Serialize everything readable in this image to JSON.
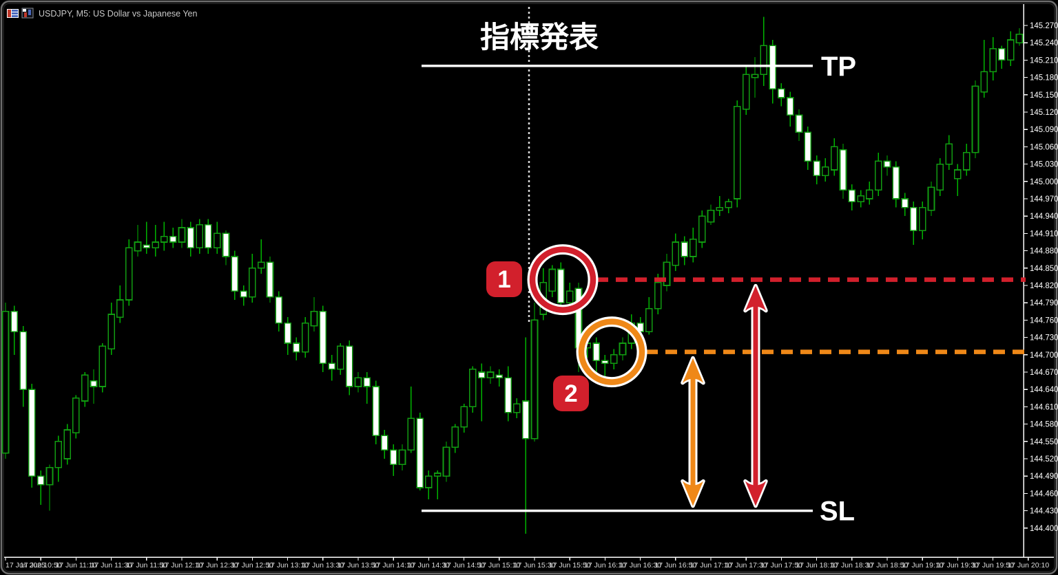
{
  "window": {
    "title": "USDJPY, M5:  US Dollar vs Japanese Yen",
    "icons": [
      "chart-list-icon",
      "candlestick-window-icon"
    ]
  },
  "annotations": {
    "event_label": "指標発表",
    "tp_label": "TP",
    "sl_label": "SL",
    "badge1": "1",
    "badge2": "2",
    "tp_price": 145.2,
    "sl_price": 144.43,
    "entry1_price": 144.83,
    "entry2_price": 144.705,
    "colors": {
      "red": "#d2202c",
      "orange": "#ef8818",
      "white": "#ffffff",
      "dotted_line": "#d9d9d9"
    }
  },
  "price_axis": {
    "labels": [
      "145.270",
      "145.240",
      "145.210",
      "145.180",
      "145.150",
      "145.120",
      "145.090",
      "145.060",
      "145.030",
      "145.000",
      "144.970",
      "144.940",
      "144.910",
      "144.880",
      "144.850",
      "144.820",
      "144.790",
      "144.760",
      "144.730",
      "144.700",
      "144.670",
      "144.640",
      "144.610",
      "144.580",
      "144.550",
      "144.520",
      "144.490",
      "144.460",
      "144.430",
      "144.400"
    ]
  },
  "time_axis": {
    "labels": [
      "17 Jun 2025",
      "17 Jun 10:50",
      "17 Jun 11:10",
      "17 Jun 11:30",
      "17 Jun 11:50",
      "17 Jun 12:10",
      "17 Jun 12:30",
      "17 Jun 12:50",
      "17 Jun 13:10",
      "17 Jun 13:30",
      "17 Jun 13:50",
      "17 Jun 14:10",
      "17 Jun 14:30",
      "17 Jun 14:50",
      "17 Jun 15:10",
      "17 Jun 15:30",
      "17 Jun 15:50",
      "17 Jun 16:10",
      "17 Jun 16:30",
      "17 Jun 16:50",
      "17 Jun 17:10",
      "17 Jun 17:30",
      "17 Jun 17:50",
      "17 Jun 18:10",
      "17 Jun 18:30",
      "17 Jun 18:50",
      "17 Jun 19:10",
      "17 Jun 19:30",
      "17 Jun 19:50",
      "17 Jun 20:10"
    ]
  },
  "chart_data": {
    "type": "candlestick",
    "symbol": "USDJPY",
    "timeframe": "M5",
    "title": "USDJPY, M5:  US Dollar vs Japanese Yen",
    "price_min": 144.4,
    "price_max": 145.27,
    "price_step": 0.03,
    "grid": false,
    "up_fill": "#000000",
    "down_fill": "#ffffff",
    "candle_border": "#129b12",
    "wick_color": "#00b400",
    "candles": [
      [
        144.53,
        144.79,
        144.52,
        144.775,
        "u"
      ],
      [
        144.775,
        144.785,
        144.7,
        144.74,
        "d"
      ],
      [
        144.74,
        144.75,
        144.61,
        144.64,
        "d"
      ],
      [
        144.64,
        144.65,
        144.47,
        144.49,
        "d"
      ],
      [
        144.49,
        144.5,
        144.44,
        144.475,
        "d"
      ],
      [
        144.475,
        144.51,
        144.43,
        144.505,
        "u"
      ],
      [
        144.505,
        144.56,
        144.48,
        144.55,
        "u"
      ],
      [
        144.52,
        144.58,
        144.51,
        144.57,
        "u"
      ],
      [
        144.565,
        144.63,
        144.555,
        144.625,
        "u"
      ],
      [
        144.62,
        144.67,
        144.61,
        144.665,
        "u"
      ],
      [
        144.655,
        144.675,
        144.615,
        144.645,
        "d"
      ],
      [
        144.645,
        144.72,
        144.635,
        144.715,
        "u"
      ],
      [
        144.71,
        144.79,
        144.7,
        144.77,
        "u"
      ],
      [
        144.765,
        144.82,
        144.755,
        144.795,
        "u"
      ],
      [
        144.795,
        144.9,
        144.785,
        144.885,
        "u"
      ],
      [
        144.88,
        144.925,
        144.87,
        144.895,
        "u"
      ],
      [
        144.89,
        144.93,
        144.875,
        144.885,
        "d"
      ],
      [
        144.885,
        144.925,
        144.87,
        144.895,
        "u"
      ],
      [
        144.895,
        144.93,
        144.88,
        144.905,
        "u"
      ],
      [
        144.905,
        144.92,
        144.885,
        144.895,
        "d"
      ],
      [
        144.895,
        144.935,
        144.885,
        144.92,
        "u"
      ],
      [
        144.92,
        144.93,
        144.87,
        144.885,
        "d"
      ],
      [
        144.885,
        144.935,
        144.875,
        144.925,
        "u"
      ],
      [
        144.925,
        144.935,
        144.875,
        144.885,
        "d"
      ],
      [
        144.885,
        144.93,
        144.875,
        144.91,
        "u"
      ],
      [
        144.91,
        144.915,
        144.855,
        144.87,
        "d"
      ],
      [
        144.87,
        144.88,
        144.795,
        144.81,
        "d"
      ],
      [
        144.81,
        144.82,
        144.785,
        144.8,
        "d"
      ],
      [
        144.8,
        144.875,
        144.79,
        144.85,
        "u"
      ],
      [
        144.85,
        144.9,
        144.84,
        144.86,
        "u"
      ],
      [
        144.86,
        144.87,
        144.79,
        144.8,
        "d"
      ],
      [
        144.8,
        144.81,
        144.74,
        144.755,
        "d"
      ],
      [
        144.755,
        144.765,
        144.7,
        144.72,
        "d"
      ],
      [
        144.72,
        144.73,
        144.69,
        144.705,
        "d"
      ],
      [
        144.705,
        144.765,
        144.695,
        144.755,
        "u"
      ],
      [
        144.75,
        144.8,
        144.74,
        144.775,
        "u"
      ],
      [
        144.775,
        144.785,
        144.67,
        144.685,
        "d"
      ],
      [
        144.685,
        144.7,
        144.655,
        144.675,
        "d"
      ],
      [
        144.675,
        144.72,
        144.665,
        144.715,
        "u"
      ],
      [
        144.715,
        144.725,
        144.63,
        144.645,
        "d"
      ],
      [
        144.645,
        144.67,
        144.635,
        144.66,
        "u"
      ],
      [
        144.66,
        144.67,
        144.615,
        144.645,
        "d"
      ],
      [
        144.645,
        144.655,
        144.545,
        144.56,
        "d"
      ],
      [
        144.56,
        144.57,
        144.52,
        144.535,
        "d"
      ],
      [
        144.535,
        144.545,
        144.49,
        144.51,
        "d"
      ],
      [
        144.51,
        144.545,
        144.5,
        144.535,
        "u"
      ],
      [
        144.535,
        144.645,
        144.53,
        144.59,
        "u"
      ],
      [
        144.59,
        144.6,
        144.465,
        144.47,
        "d"
      ],
      [
        144.47,
        144.5,
        144.45,
        144.49,
        "u"
      ],
      [
        144.49,
        144.5,
        144.45,
        144.495,
        "u"
      ],
      [
        144.49,
        144.55,
        144.48,
        144.54,
        "u"
      ],
      [
        144.54,
        144.58,
        144.53,
        144.575,
        "u"
      ],
      [
        144.575,
        144.615,
        144.565,
        144.61,
        "u"
      ],
      [
        144.61,
        144.68,
        144.6,
        144.675,
        "u"
      ],
      [
        144.67,
        144.685,
        144.585,
        144.66,
        "d"
      ],
      [
        144.66,
        144.68,
        144.65,
        144.67,
        "u"
      ],
      [
        144.665,
        144.675,
        144.645,
        144.66,
        "d"
      ],
      [
        144.66,
        144.68,
        144.585,
        144.6,
        "d"
      ],
      [
        144.6,
        144.625,
        144.59,
        144.615,
        "u"
      ],
      [
        144.62,
        144.73,
        144.39,
        144.555,
        "d"
      ],
      [
        144.555,
        144.79,
        144.55,
        144.76,
        "u"
      ],
      [
        144.77,
        144.85,
        144.76,
        144.825,
        "u"
      ],
      [
        144.81,
        144.855,
        144.8,
        144.848,
        "u"
      ],
      [
        144.848,
        144.86,
        144.77,
        144.79,
        "d"
      ],
      [
        144.79,
        144.825,
        144.78,
        144.81,
        "u"
      ],
      [
        144.815,
        144.825,
        144.67,
        144.712,
        "d"
      ],
      [
        144.712,
        144.74,
        144.695,
        144.72,
        "u"
      ],
      [
        144.72,
        144.73,
        144.665,
        144.69,
        "d"
      ],
      [
        144.69,
        144.7,
        144.65,
        144.685,
        "d"
      ],
      [
        144.685,
        144.71,
        144.675,
        144.7,
        "u"
      ],
      [
        144.7,
        144.73,
        144.69,
        144.72,
        "u"
      ],
      [
        144.72,
        144.77,
        144.71,
        144.755,
        "u"
      ],
      [
        144.755,
        144.765,
        144.73,
        144.74,
        "d"
      ],
      [
        144.74,
        144.8,
        144.735,
        144.78,
        "u"
      ],
      [
        144.78,
        144.84,
        144.77,
        144.825,
        "u"
      ],
      [
        144.82,
        144.875,
        144.81,
        144.86,
        "u"
      ],
      [
        144.855,
        144.91,
        144.845,
        144.895,
        "u"
      ],
      [
        144.895,
        144.905,
        144.855,
        144.87,
        "d"
      ],
      [
        144.87,
        144.92,
        144.86,
        144.9,
        "u"
      ],
      [
        144.895,
        144.95,
        144.885,
        144.94,
        "u"
      ],
      [
        144.93,
        144.96,
        144.925,
        144.95,
        "u"
      ],
      [
        144.95,
        144.975,
        144.94,
        144.955,
        "u"
      ],
      [
        144.955,
        144.97,
        144.945,
        144.965,
        "u"
      ],
      [
        144.97,
        145.14,
        144.955,
        145.13,
        "u"
      ],
      [
        145.125,
        145.2,
        145.115,
        145.185,
        "u"
      ],
      [
        145.18,
        145.215,
        145.145,
        145.185,
        "u"
      ],
      [
        145.185,
        145.285,
        145.165,
        145.235,
        "u"
      ],
      [
        145.235,
        145.245,
        145.135,
        145.16,
        "d"
      ],
      [
        145.16,
        145.17,
        145.13,
        145.145,
        "d"
      ],
      [
        145.145,
        145.155,
        145.095,
        145.115,
        "d"
      ],
      [
        145.115,
        145.125,
        145.07,
        145.085,
        "d"
      ],
      [
        145.085,
        145.095,
        145.02,
        145.035,
        "d"
      ],
      [
        145.035,
        145.045,
        144.995,
        145.01,
        "d"
      ],
      [
        145.01,
        145.04,
        145.0,
        145.025,
        "u"
      ],
      [
        145.02,
        145.075,
        145.01,
        145.06,
        "u"
      ],
      [
        145.055,
        145.065,
        144.97,
        144.985,
        "d"
      ],
      [
        144.985,
        144.995,
        144.95,
        144.965,
        "d"
      ],
      [
        144.965,
        144.985,
        144.955,
        144.975,
        "u"
      ],
      [
        144.97,
        145.0,
        144.96,
        144.985,
        "u"
      ],
      [
        144.985,
        145.05,
        144.975,
        145.035,
        "u"
      ],
      [
        145.035,
        145.045,
        145.01,
        145.025,
        "d"
      ],
      [
        145.025,
        145.035,
        144.955,
        144.97,
        "d"
      ],
      [
        144.97,
        144.98,
        144.94,
        144.955,
        "d"
      ],
      [
        144.955,
        144.965,
        144.89,
        144.915,
        "d"
      ],
      [
        144.915,
        144.965,
        144.9,
        144.955,
        "u"
      ],
      [
        144.95,
        145.0,
        144.94,
        144.99,
        "u"
      ],
      [
        144.985,
        145.04,
        144.975,
        145.03,
        "u"
      ],
      [
        145.03,
        145.08,
        145.02,
        145.065,
        "u"
      ],
      [
        145.005,
        145.03,
        144.975,
        145.02,
        "u"
      ],
      [
        145.02,
        145.065,
        145.01,
        145.05,
        "u"
      ],
      [
        145.05,
        145.175,
        145.04,
        145.165,
        "u"
      ],
      [
        145.155,
        145.245,
        145.145,
        145.19,
        "u"
      ],
      [
        145.19,
        145.25,
        145.175,
        145.23,
        "u"
      ],
      [
        145.23,
        145.235,
        145.195,
        145.21,
        "d"
      ],
      [
        145.21,
        145.26,
        145.2,
        145.245,
        "u"
      ],
      [
        145.24,
        145.265,
        145.235,
        145.255,
        "u"
      ]
    ]
  }
}
